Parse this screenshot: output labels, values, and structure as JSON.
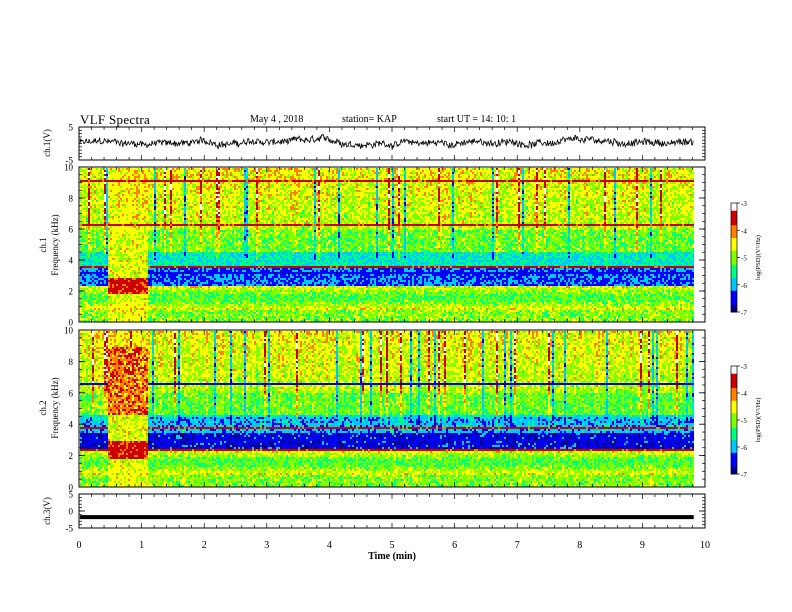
{
  "header": {
    "title": "VLF Spectra",
    "date": "May 4 , 2018",
    "station": "station= KAP",
    "start": "start UT = 14: 10: 1"
  },
  "chart_data": [
    {
      "type": "line",
      "name": "ch1-waveform",
      "ylabel": "ch.1(V)",
      "ylim": [
        -5,
        5
      ],
      "yticks": [
        "5",
        "-5"
      ],
      "xlim": [
        0,
        10
      ],
      "baseline": 0.2,
      "noise_amplitude": 1.2
    },
    {
      "type": "heatmap",
      "name": "ch1-spectrogram",
      "ylabel_line1": "ch.1",
      "ylabel_line2": "Frequency (kHz)",
      "ylim": [
        0,
        10
      ],
      "yticks": [
        "0",
        "2",
        "4",
        "6",
        "8",
        "10"
      ],
      "xlim": [
        0,
        10
      ],
      "data_end_min": 9.82,
      "colorbar": {
        "label": "log(PSD)(V²/Hz)",
        "min": -7,
        "max": -3,
        "ticks": [
          "-3",
          "-4",
          "-5",
          "-6",
          "-7"
        ]
      },
      "segment": {
        "start_min": 0.45,
        "end_min": 1.08
      }
    },
    {
      "type": "heatmap",
      "name": "ch2-spectrogram",
      "ylabel_line1": "ch.2",
      "ylabel_line2": "Frequency (kHz)",
      "ylim": [
        0,
        10
      ],
      "yticks": [
        "0",
        "2",
        "4",
        "6",
        "8",
        "10"
      ],
      "xlim": [
        0,
        10
      ],
      "data_end_min": 9.82,
      "colorbar": {
        "label": "log(PSD)(V²/Hz)",
        "min": -7,
        "max": -3,
        "ticks": [
          "-3",
          "-4",
          "-5",
          "-6",
          "-7"
        ]
      },
      "segment": {
        "start_min": 0.45,
        "end_min": 1.08
      }
    },
    {
      "type": "line",
      "name": "ch3-waveform",
      "ylabel": "ch.3(V)",
      "ylim": [
        -5,
        5
      ],
      "yticks": [
        "5",
        "0",
        "-5"
      ],
      "xlim": [
        0,
        10
      ],
      "constant_value": -1.8,
      "xlabel": "Time (min)",
      "xticks": [
        "0",
        "1",
        "2",
        "3",
        "4",
        "5",
        "6",
        "7",
        "8",
        "9",
        "10"
      ]
    }
  ],
  "colors": {
    "axis": "#000000",
    "colormap": [
      "#000080",
      "#0000ff",
      "#00c8ff",
      "#00ff80",
      "#80ff00",
      "#ffff00",
      "#ff8000",
      "#cc0000",
      "#ffffff"
    ]
  }
}
